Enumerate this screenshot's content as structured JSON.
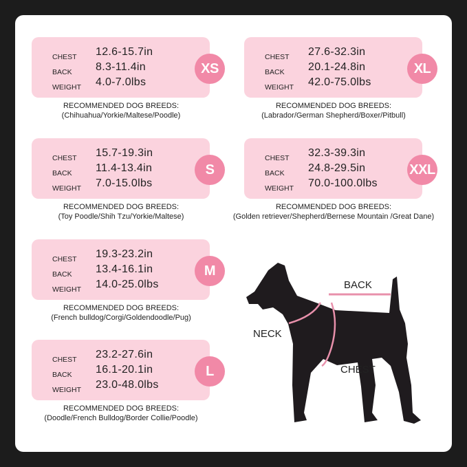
{
  "labels": {
    "chest": "CHEST",
    "back": "BACK",
    "weight": "WEIGHT",
    "recommended": "RECOMMENDED DOG BREEDS:"
  },
  "sizes": [
    {
      "size": "XS",
      "chest": "12.6-15.7in",
      "back": "8.3-11.4in",
      "weight": "4.0-7.0lbs",
      "breeds": "(Chihuahua/Yorkie/Maltese/Poodle)"
    },
    {
      "size": "S",
      "chest": "15.7-19.3in",
      "back": "11.4-13.4in",
      "weight": "7.0-15.0lbs",
      "breeds": "(Toy Poodle/Shih Tzu/Yorkie/Maltese)"
    },
    {
      "size": "M",
      "chest": "19.3-23.2in",
      "back": "13.4-16.1in",
      "weight": "14.0-25.0lbs",
      "breeds": "(French bulldog/Corgi/Goldendoodle/Pug)"
    },
    {
      "size": "L",
      "chest": "23.2-27.6in",
      "back": "16.1-20.1in",
      "weight": "23.0-48.0lbs",
      "breeds": "(Doodle/French Bulldog/Border Collie/Poodle)"
    },
    {
      "size": "XL",
      "chest": "27.6-32.3in",
      "back": "20.1-24.8in",
      "weight": "42.0-75.0lbs",
      "breeds": "(Labrador/German Shepherd/Boxer/Pitbull)"
    },
    {
      "size": "XXL",
      "chest": "32.3-39.3in",
      "back": "24.8-29.5in",
      "weight": "70.0-100.0lbs",
      "breeds": "(Golden retriever/Shepherd/Bernese Mountain /Great Dane)"
    }
  ],
  "diagram": {
    "back": "BACK",
    "neck": "NECK",
    "chest": "CHEST"
  },
  "colors": {
    "box": "#fbd3de",
    "badge": "#f189a7",
    "measure_line": "#e890ab",
    "dog": "#1f1b1e"
  }
}
